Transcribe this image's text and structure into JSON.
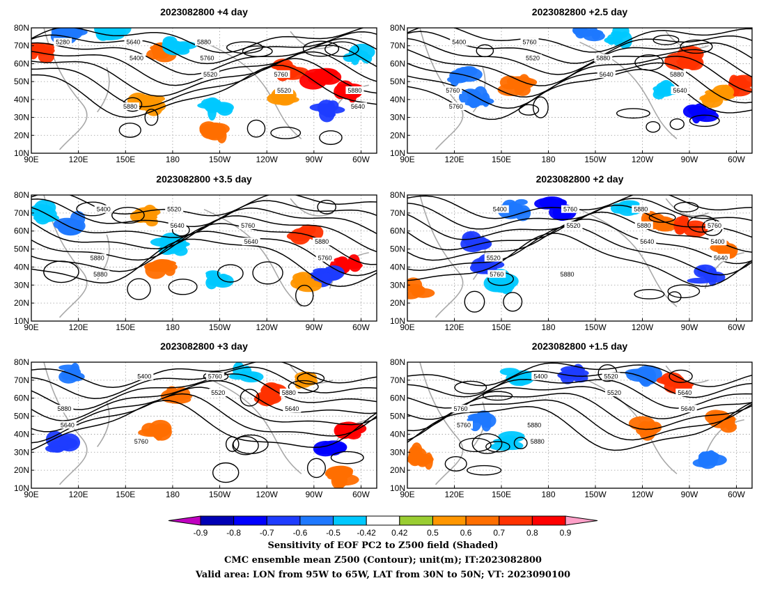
{
  "chart_data": {
    "type": "contour-map",
    "region": {
      "lon_ticks": [
        "90E",
        "120E",
        "150E",
        "180",
        "150W",
        "120W",
        "90W",
        "60W"
      ],
      "lat_ticks": [
        "10N",
        "20N",
        "30N",
        "40N",
        "50N",
        "60N",
        "70N",
        "80N"
      ]
    },
    "panels": [
      {
        "title": "2023082800 +4 day",
        "contour_labels": [
          "5280",
          "5400",
          "5520",
          "5520",
          "5640",
          "5640",
          "5760",
          "5760",
          "5880",
          "5880",
          "5880"
        ],
        "shading": [
          {
            "lon": 113,
            "lat": 76,
            "value": -0.6
          },
          {
            "lon": 140,
            "lat": 77,
            "value": -0.5
          },
          {
            "lon": 95,
            "lat": 67,
            "value": 0.7
          },
          {
            "lon": 170,
            "lat": 66,
            "value": 0.6
          },
          {
            "lon": 183,
            "lat": 70,
            "value": -0.5
          },
          {
            "lon": 255,
            "lat": 57,
            "value": 0.7
          },
          {
            "lon": 275,
            "lat": 52,
            "value": 0.8
          },
          {
            "lon": 292,
            "lat": 45,
            "value": 0.8
          },
          {
            "lon": 280,
            "lat": 34,
            "value": -0.7
          },
          {
            "lon": 208,
            "lat": 35,
            "value": -0.5
          },
          {
            "lon": 208,
            "lat": 21,
            "value": 0.6
          },
          {
            "lon": 163,
            "lat": 38,
            "value": 0.5
          },
          {
            "lon": 253,
            "lat": 41,
            "value": 0.5
          },
          {
            "lon": 298,
            "lat": 65,
            "value": -0.5
          }
        ]
      },
      {
        "title": "2023082800 +2.5 day",
        "contour_labels": [
          "5400",
          "5520",
          "5640",
          "5640",
          "5760",
          "5760",
          "5880",
          "5880",
          "5760"
        ],
        "shading": [
          {
            "lon": 205,
            "lat": 77,
            "value": -0.6
          },
          {
            "lon": 225,
            "lat": 76,
            "value": -0.5
          },
          {
            "lon": 124,
            "lat": 54,
            "value": -0.6
          },
          {
            "lon": 135,
            "lat": 41,
            "value": -0.6
          },
          {
            "lon": 160,
            "lat": 48,
            "value": 0.6
          },
          {
            "lon": 268,
            "lat": 63,
            "value": 0.7
          },
          {
            "lon": 300,
            "lat": 48,
            "value": 0.7
          },
          {
            "lon": 278,
            "lat": 33,
            "value": -0.8
          },
          {
            "lon": 255,
            "lat": 45,
            "value": -0.5
          },
          {
            "lon": 288,
            "lat": 42,
            "value": 0.5
          }
        ]
      },
      {
        "title": "2023082800 +3.5 day",
        "contour_labels": [
          "5400",
          "5640",
          "5640",
          "5760",
          "5880",
          "5520",
          "5760",
          "5880",
          "5880"
        ],
        "shading": [
          {
            "lon": 100,
            "lat": 70,
            "value": -0.5
          },
          {
            "lon": 117,
            "lat": 64,
            "value": -0.6
          },
          {
            "lon": 165,
            "lat": 68,
            "value": 0.5
          },
          {
            "lon": 175,
            "lat": 40,
            "value": 0.6
          },
          {
            "lon": 208,
            "lat": 34,
            "value": -0.5
          },
          {
            "lon": 265,
            "lat": 60,
            "value": 0.7
          },
          {
            "lon": 292,
            "lat": 42,
            "value": 0.8
          },
          {
            "lon": 278,
            "lat": 35,
            "value": -0.7
          },
          {
            "lon": 262,
            "lat": 32,
            "value": 0.5
          },
          {
            "lon": 180,
            "lat": 52,
            "value": -0.5
          }
        ]
      },
      {
        "title": "2023082800 +2 day",
        "contour_labels": [
          "5400",
          "5520",
          "5640",
          "5640",
          "5760",
          "5760",
          "5880",
          "5400",
          "5520",
          "5880",
          "5880",
          "5760"
        ],
        "shading": [
          {
            "lon": 185,
            "lat": 73,
            "value": -0.8
          },
          {
            "lon": 160,
            "lat": 73,
            "value": -0.6
          },
          {
            "lon": 230,
            "lat": 75,
            "value": -0.5
          },
          {
            "lon": 133,
            "lat": 55,
            "value": -0.7
          },
          {
            "lon": 140,
            "lat": 40,
            "value": -0.7
          },
          {
            "lon": 152,
            "lat": 32,
            "value": -0.5
          },
          {
            "lon": 95,
            "lat": 27,
            "value": 0.6
          },
          {
            "lon": 250,
            "lat": 65,
            "value": 0.6
          },
          {
            "lon": 268,
            "lat": 63,
            "value": 0.7
          },
          {
            "lon": 282,
            "lat": 35,
            "value": -0.7
          },
          {
            "lon": 293,
            "lat": 50,
            "value": 0.6
          }
        ]
      },
      {
        "title": "2023082800 +3 day",
        "contour_labels": [
          "5400",
          "5520",
          "5640",
          "5640",
          "5760",
          "5760",
          "5880",
          "5880"
        ],
        "shading": [
          {
            "lon": 113,
            "lat": 74,
            "value": -0.6
          },
          {
            "lon": 180,
            "lat": 62,
            "value": 0.6
          },
          {
            "lon": 110,
            "lat": 35,
            "value": -0.7
          },
          {
            "lon": 168,
            "lat": 43,
            "value": 0.6
          },
          {
            "lon": 245,
            "lat": 62,
            "value": 0.7
          },
          {
            "lon": 295,
            "lat": 42,
            "value": 0.8
          },
          {
            "lon": 280,
            "lat": 32,
            "value": -0.8
          },
          {
            "lon": 285,
            "lat": 17,
            "value": 0.6
          },
          {
            "lon": 225,
            "lat": 73,
            "value": -0.5
          },
          {
            "lon": 265,
            "lat": 70,
            "value": 0.5
          }
        ]
      },
      {
        "title": "2023082800 +1.5 day",
        "contour_labels": [
          "5400",
          "5520",
          "5640",
          "5760",
          "5880",
          "5520",
          "5640",
          "5760",
          "5880"
        ],
        "shading": [
          {
            "lon": 195,
            "lat": 73,
            "value": -0.7
          },
          {
            "lon": 160,
            "lat": 73,
            "value": -0.5
          },
          {
            "lon": 240,
            "lat": 73,
            "value": -0.6
          },
          {
            "lon": 138,
            "lat": 48,
            "value": -0.6
          },
          {
            "lon": 155,
            "lat": 36,
            "value": -0.5
          },
          {
            "lon": 98,
            "lat": 28,
            "value": 0.6
          },
          {
            "lon": 245,
            "lat": 43,
            "value": 0.6
          },
          {
            "lon": 262,
            "lat": 68,
            "value": 0.7
          },
          {
            "lon": 292,
            "lat": 47,
            "value": 0.6
          },
          {
            "lon": 282,
            "lat": 27,
            "value": -0.6
          }
        ]
      }
    ],
    "colorbar": {
      "labels": [
        "-0.9",
        "-0.8",
        "-0.7",
        "-0.6",
        "-0.5",
        "-0.42",
        "0.42",
        "0.5",
        "0.6",
        "0.7",
        "0.8",
        "0.9"
      ],
      "colors": [
        "#0000b4",
        "#0000ff",
        "#1e3cff",
        "#1e78ff",
        "#00c8ff",
        "#ffffff",
        "#9acd32",
        "#ff9600",
        "#ff6e00",
        "#ff3200",
        "#ff0000"
      ],
      "low_color": "#c000c0",
      "high_color": "#ffa0c8"
    },
    "caption": [
      "Sensitivity of EOF PC2 to Z500 field (Shaded)",
      "CMC ensemble mean Z500 (Contour); unit(m); IT:2023082800",
      "Valid area: LON from 95W to 65W, LAT from 30N to 50N; VT: 2023090100"
    ]
  }
}
